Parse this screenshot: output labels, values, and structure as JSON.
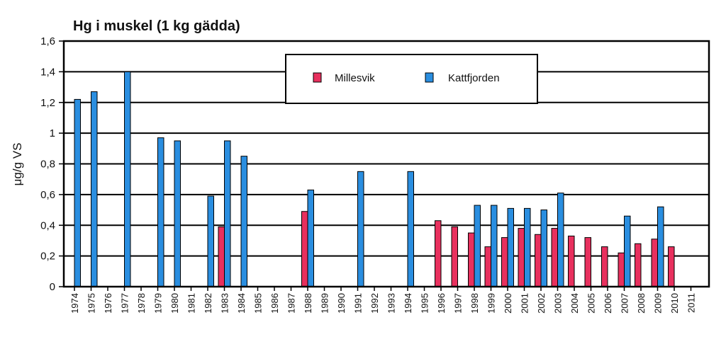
{
  "chart_data": {
    "type": "bar",
    "title": "Hg i muskel (1 kg gädda)",
    "ylabel": "μg/g VS",
    "xlabel": "",
    "ylim": [
      0,
      1.6
    ],
    "yticks": [
      "0",
      "0,2",
      "0,4",
      "0,6",
      "0,8",
      "1",
      "1,2",
      "1,4",
      "1,6"
    ],
    "grid": "horizontal",
    "legend_position": "top-center",
    "categories": [
      "1974",
      "1975",
      "1976",
      "1977",
      "1978",
      "1979",
      "1980",
      "1981",
      "1982",
      "1983",
      "1984",
      "1985",
      "1986",
      "1987",
      "1988",
      "1989",
      "1990",
      "1991",
      "1992",
      "1993",
      "1994",
      "1995",
      "1996",
      "1997",
      "1998",
      "1999",
      "2000",
      "2001",
      "2002",
      "2003",
      "2004",
      "2005",
      "2006",
      "2007",
      "2008",
      "2009",
      "2010",
      "2011"
    ],
    "series": [
      {
        "name": "Millesvik",
        "color": "#e8305e",
        "values": [
          null,
          null,
          null,
          null,
          null,
          null,
          null,
          null,
          null,
          0.39,
          null,
          null,
          null,
          null,
          0.49,
          null,
          null,
          null,
          null,
          null,
          null,
          null,
          0.43,
          0.39,
          0.35,
          0.26,
          0.32,
          0.38,
          0.34,
          0.38,
          0.33,
          0.32,
          0.26,
          0.22,
          0.28,
          0.31,
          0.26,
          null
        ]
      },
      {
        "name": "Kattfjorden",
        "color": "#2a8ee0",
        "values": [
          1.22,
          1.27,
          null,
          1.4,
          null,
          0.97,
          0.95,
          null,
          0.59,
          0.95,
          0.85,
          null,
          null,
          null,
          0.63,
          null,
          null,
          0.75,
          null,
          null,
          0.75,
          null,
          null,
          null,
          0.53,
          0.53,
          0.51,
          0.51,
          0.5,
          0.61,
          null,
          null,
          null,
          0.46,
          null,
          0.52,
          null,
          null
        ]
      }
    ]
  }
}
